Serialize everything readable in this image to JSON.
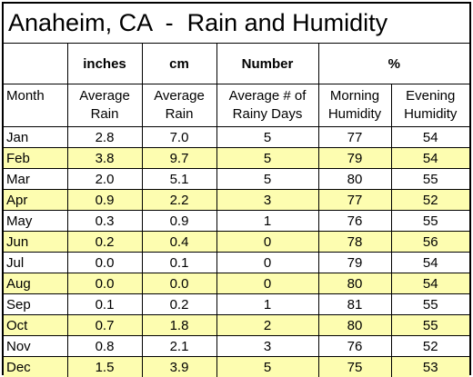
{
  "title": "Anaheim, CA  -  Rain and Humidity",
  "unit_headers": [
    "",
    "inches",
    "cm",
    "Number",
    "%"
  ],
  "column_headers": [
    {
      "line1": "Month",
      "line2": ""
    },
    {
      "line1": "Average",
      "line2": "Rain"
    },
    {
      "line1": "Average",
      "line2": "Rain"
    },
    {
      "line1": "Average # of",
      "line2": "Rainy Days"
    },
    {
      "line1": "Morning",
      "line2": "Humidity"
    },
    {
      "line1": "Evening",
      "line2": "Humidity"
    }
  ],
  "rows": [
    {
      "month": "Jan",
      "inches": "2.8",
      "cm": "7.0",
      "days": "5",
      "morning": "77",
      "evening": "54"
    },
    {
      "month": "Feb",
      "inches": "3.8",
      "cm": "9.7",
      "days": "5",
      "morning": "79",
      "evening": "54"
    },
    {
      "month": "Mar",
      "inches": "2.0",
      "cm": "5.1",
      "days": "5",
      "morning": "80",
      "evening": "55"
    },
    {
      "month": "Apr",
      "inches": "0.9",
      "cm": "2.2",
      "days": "3",
      "morning": "77",
      "evening": "52"
    },
    {
      "month": "May",
      "inches": "0.3",
      "cm": "0.9",
      "days": "1",
      "morning": "76",
      "evening": "55"
    },
    {
      "month": "Jun",
      "inches": "0.2",
      "cm": "0.4",
      "days": "0",
      "morning": "78",
      "evening": "56"
    },
    {
      "month": "Jul",
      "inches": "0.0",
      "cm": "0.1",
      "days": "0",
      "morning": "79",
      "evening": "54"
    },
    {
      "month": "Aug",
      "inches": "0.0",
      "cm": "0.0",
      "days": "0",
      "morning": "80",
      "evening": "54"
    },
    {
      "month": "Sep",
      "inches": "0.1",
      "cm": "0.2",
      "days": "1",
      "morning": "81",
      "evening": "55"
    },
    {
      "month": "Oct",
      "inches": "0.7",
      "cm": "1.8",
      "days": "2",
      "morning": "80",
      "evening": "55"
    },
    {
      "month": "Nov",
      "inches": "0.8",
      "cm": "2.1",
      "days": "3",
      "morning": "76",
      "evening": "52"
    },
    {
      "month": "Dec",
      "inches": "1.5",
      "cm": "3.9",
      "days": "5",
      "morning": "75",
      "evening": "53"
    }
  ],
  "colors": {
    "alt_row": "#fdfdb0",
    "border": "#000000",
    "background": "#ffffff"
  }
}
